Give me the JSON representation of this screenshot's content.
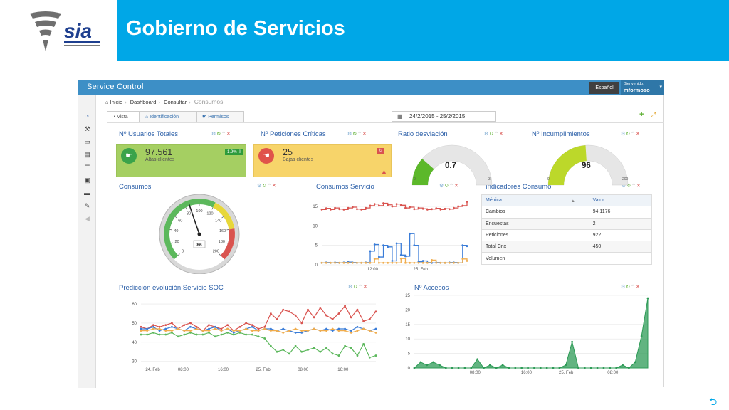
{
  "brand": {
    "logo_text": "sia",
    "banner_title": "Gobierno de Servicios"
  },
  "app": {
    "title": "Service Control",
    "language": "Español",
    "user_greeting": "Bienvenido,",
    "user_name": "mformoso"
  },
  "breadcrumb": [
    "Inicio",
    "Dashboard",
    "Consultar",
    "Consumos"
  ],
  "tabs": [
    {
      "label": "Vista",
      "active": true
    },
    {
      "label": "Identificación",
      "active": false
    },
    {
      "label": "Permisos",
      "active": false
    }
  ],
  "daterange": "24/2/2015 - 25/2/2015",
  "panels": {
    "usuarios": {
      "title": "Nº Usuarios Totales",
      "value": "97.561",
      "label": "Altas clientes",
      "badge": "1.9% ⇩",
      "color": "#a5cf62"
    },
    "peticiones": {
      "title": "Nº Peticiones Críticas",
      "value": "25",
      "label": "Bajas clientes",
      "color": "#f7d46a"
    },
    "ratio": {
      "title": "Ratio desviación",
      "value": "0.7",
      "min": "0",
      "max": "3",
      "fraction": 0.23
    },
    "incumplimientos": {
      "title": "Nº Incumplimientos",
      "value": "96",
      "min": "0",
      "max": "200",
      "fraction": 0.48
    },
    "consumos": {
      "title": "Consumos",
      "value": "86",
      "ticks": [
        "0",
        "20",
        "40",
        "60",
        "80",
        "100",
        "120",
        "140",
        "160",
        "180",
        "200"
      ]
    },
    "consumos_servicio": {
      "title": "Consumos Servicio",
      "y_ticks": [
        "15",
        "10",
        "5",
        "0"
      ],
      "x_ticks": [
        "12:00",
        "25. Feb"
      ]
    },
    "indicadores": {
      "title": "Indicadores Consumo",
      "columns": [
        "Métrica",
        "Valor"
      ],
      "rows": [
        [
          "Cambios",
          "94.1176"
        ],
        [
          "Encuestas",
          "2"
        ],
        [
          "Peticiones",
          "922"
        ],
        [
          "Total Cnx",
          "450"
        ],
        [
          "Volumen",
          ""
        ]
      ]
    },
    "prediccion": {
      "title": "Predicción evolución Servicio SOC",
      "y_ticks": [
        "60",
        "50",
        "40",
        "30"
      ],
      "x_ticks": [
        "24. Feb",
        "08:00",
        "16:00",
        "25. Feb",
        "08:00",
        "16:00"
      ]
    },
    "accesos": {
      "title": "Nº Accesos",
      "y_ticks": [
        "25",
        "20",
        "15",
        "10",
        "5",
        "0"
      ],
      "x_ticks": [
        "08:00",
        "16:00",
        "25. Feb",
        "08:00"
      ]
    }
  },
  "chart_data": [
    {
      "type": "line",
      "title": "Consumos Servicio",
      "ylim": [
        0,
        17
      ],
      "series": [
        {
          "color": "#d9534f",
          "values": [
            14.2,
            14.5,
            14.2,
            14.6,
            14.3,
            14.2,
            14.6,
            14.8,
            14.3,
            14.2,
            14.6,
            15.2,
            15.6,
            15.2,
            15.8,
            15.4,
            15.0,
            15.6,
            15.3,
            14.6,
            14.8,
            14.3,
            14.6,
            14.4,
            14.2,
            14.3,
            14.5,
            14.2,
            14.4,
            14.3,
            14.6,
            15.0,
            15.2,
            16.2
          ]
        },
        {
          "color": "#3b7dd8",
          "values": [
            0.5,
            0.6,
            0.5,
            0.6,
            0.5,
            0.6,
            0.7,
            0.6,
            0.5,
            0.5,
            0.6,
            3.5,
            5.2,
            2.0,
            5.0,
            4.6,
            1.0,
            5.5,
            2.5,
            2.2,
            8.0,
            5.0,
            0.8,
            1.0,
            0.6,
            0.5,
            0.6,
            0.5,
            0.5,
            0.6,
            0.6,
            0.5,
            5.0,
            4.8
          ]
        },
        {
          "color": "#f0ad4e",
          "values": [
            0.5,
            0.5,
            0.5,
            0.5,
            0.5,
            0.5,
            0.5,
            0.5,
            0.5,
            0.5,
            0.5,
            0.5,
            1.5,
            0.5,
            0.5,
            0.5,
            0.5,
            0.5,
            1.6,
            0.5,
            0.5,
            0.5,
            0.5,
            0.5,
            0.5,
            1.2,
            0.5,
            0.5,
            0.5,
            0.5,
            0.5,
            0.5,
            1.5,
            1.0
          ]
        }
      ]
    },
    {
      "type": "line",
      "title": "Predicción evolución Servicio SOC",
      "ylim": [
        28,
        63
      ],
      "series": [
        {
          "color": "#d9534f",
          "values": [
            48,
            47,
            49,
            48,
            49,
            50,
            47,
            49,
            50,
            48,
            46,
            49,
            48,
            47,
            49,
            46,
            48,
            50,
            49,
            47,
            48,
            55,
            52,
            57,
            56,
            54,
            50,
            57,
            53,
            58,
            54,
            52,
            55,
            59,
            53,
            57,
            51,
            52,
            56
          ]
        },
        {
          "color": "#3b7dd8",
          "values": [
            47,
            47,
            48,
            46,
            47,
            48,
            47,
            46,
            48,
            47,
            46,
            47,
            48,
            46,
            47,
            45,
            46,
            47,
            48,
            46,
            47,
            47,
            46,
            47,
            46,
            45,
            45,
            46,
            47,
            46,
            47,
            46,
            47,
            47,
            46,
            48,
            47,
            46,
            47
          ]
        },
        {
          "color": "#f0ad4e",
          "values": [
            46,
            46,
            47,
            47,
            46,
            46,
            47,
            46,
            46,
            47,
            46,
            46,
            47,
            46,
            47,
            46,
            46,
            47,
            46,
            46,
            47,
            46,
            46,
            45,
            46,
            47,
            46,
            46,
            47,
            46,
            46,
            47,
            46,
            46,
            45,
            46,
            47,
            46,
            45
          ]
        },
        {
          "color": "#5cb85c",
          "values": [
            44,
            44,
            45,
            44,
            44,
            45,
            43,
            44,
            45,
            44,
            44,
            45,
            43,
            44,
            45,
            44,
            45,
            44,
            44,
            43,
            42,
            38,
            35,
            36,
            34,
            38,
            35,
            36,
            37,
            35,
            37,
            34,
            33,
            38,
            37,
            33,
            39,
            32,
            33
          ]
        }
      ]
    },
    {
      "type": "area",
      "title": "Nº Accesos",
      "ylim": [
        0,
        25
      ],
      "series": [
        {
          "color": "#2e9b57",
          "values": [
            0,
            2,
            1,
            2,
            1,
            0,
            0,
            0,
            0,
            0,
            3,
            0,
            1,
            0,
            1,
            0,
            0,
            0,
            0,
            0,
            0,
            0,
            0,
            0,
            1,
            9,
            0,
            0,
            0,
            0,
            0,
            0,
            0,
            1,
            0,
            2,
            11,
            24
          ]
        }
      ]
    }
  ]
}
